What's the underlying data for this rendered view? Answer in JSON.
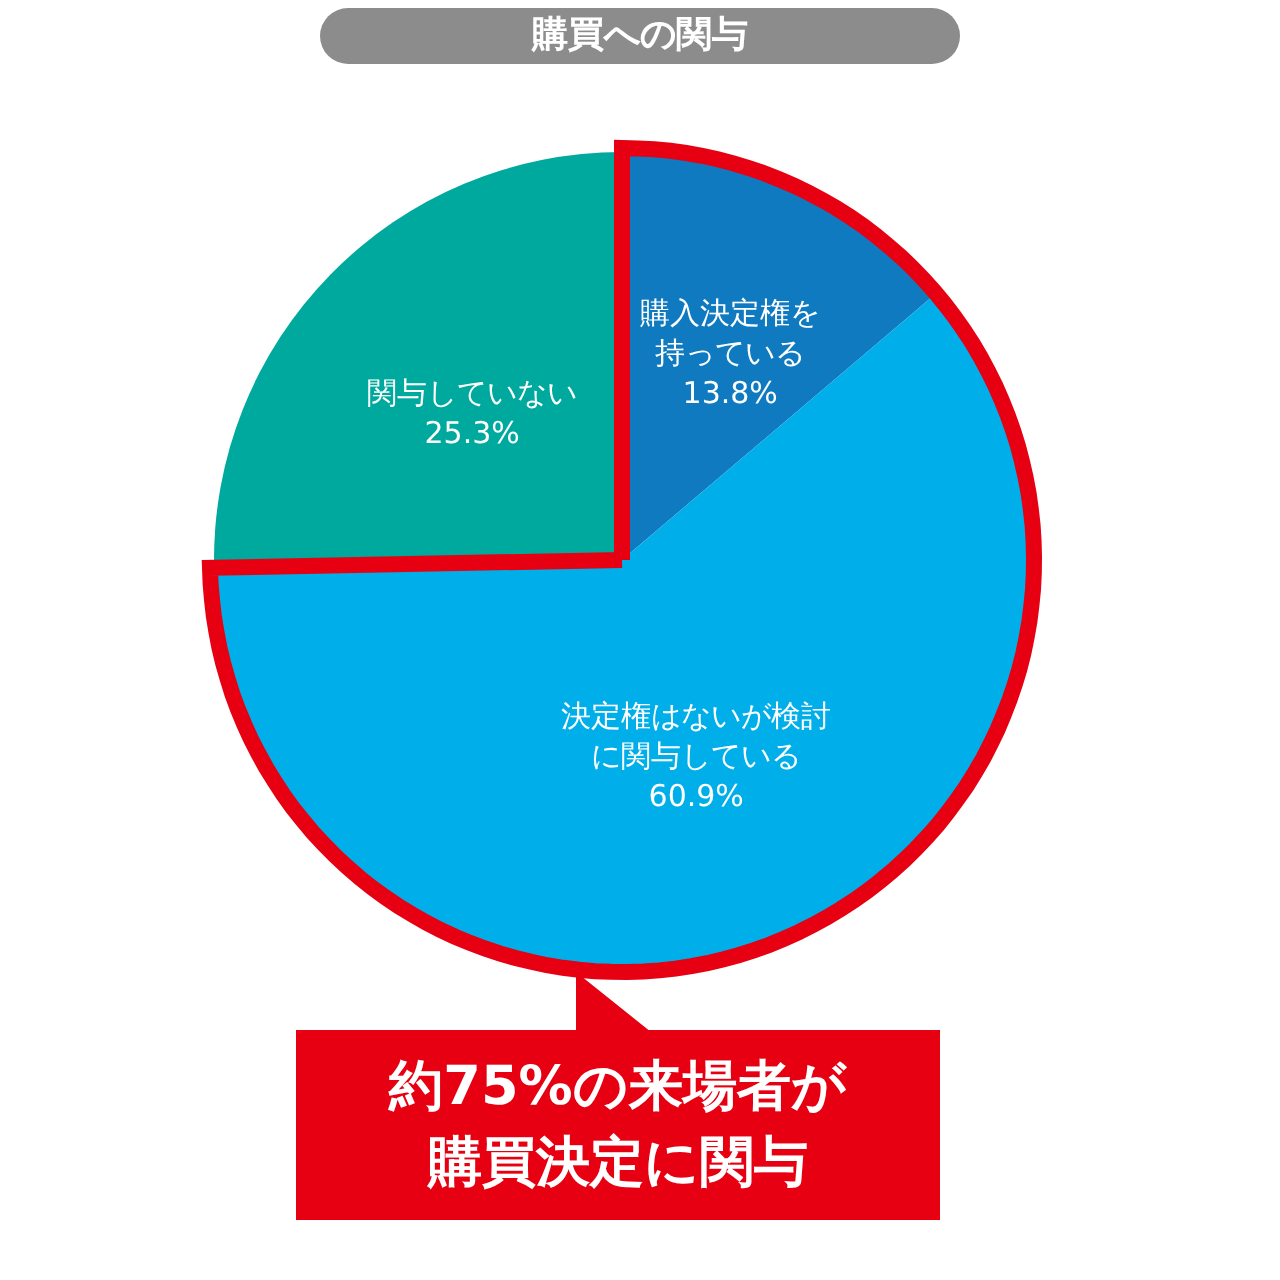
{
  "chart_data": {
    "type": "pie",
    "title": "購買への関与",
    "categories": [
      "購入決定権を持っている",
      "決定権はないが検討に関与している",
      "関与していない"
    ],
    "values": [
      13.8,
      60.9,
      25.3
    ],
    "value_labels": [
      "13.8%",
      "60.9%",
      "25.3%"
    ],
    "colors": [
      "#0f7ac0",
      "#00aee9",
      "#00a99d"
    ],
    "annotations": [
      "約75%の来場者が購買決定に関与"
    ]
  }
}
